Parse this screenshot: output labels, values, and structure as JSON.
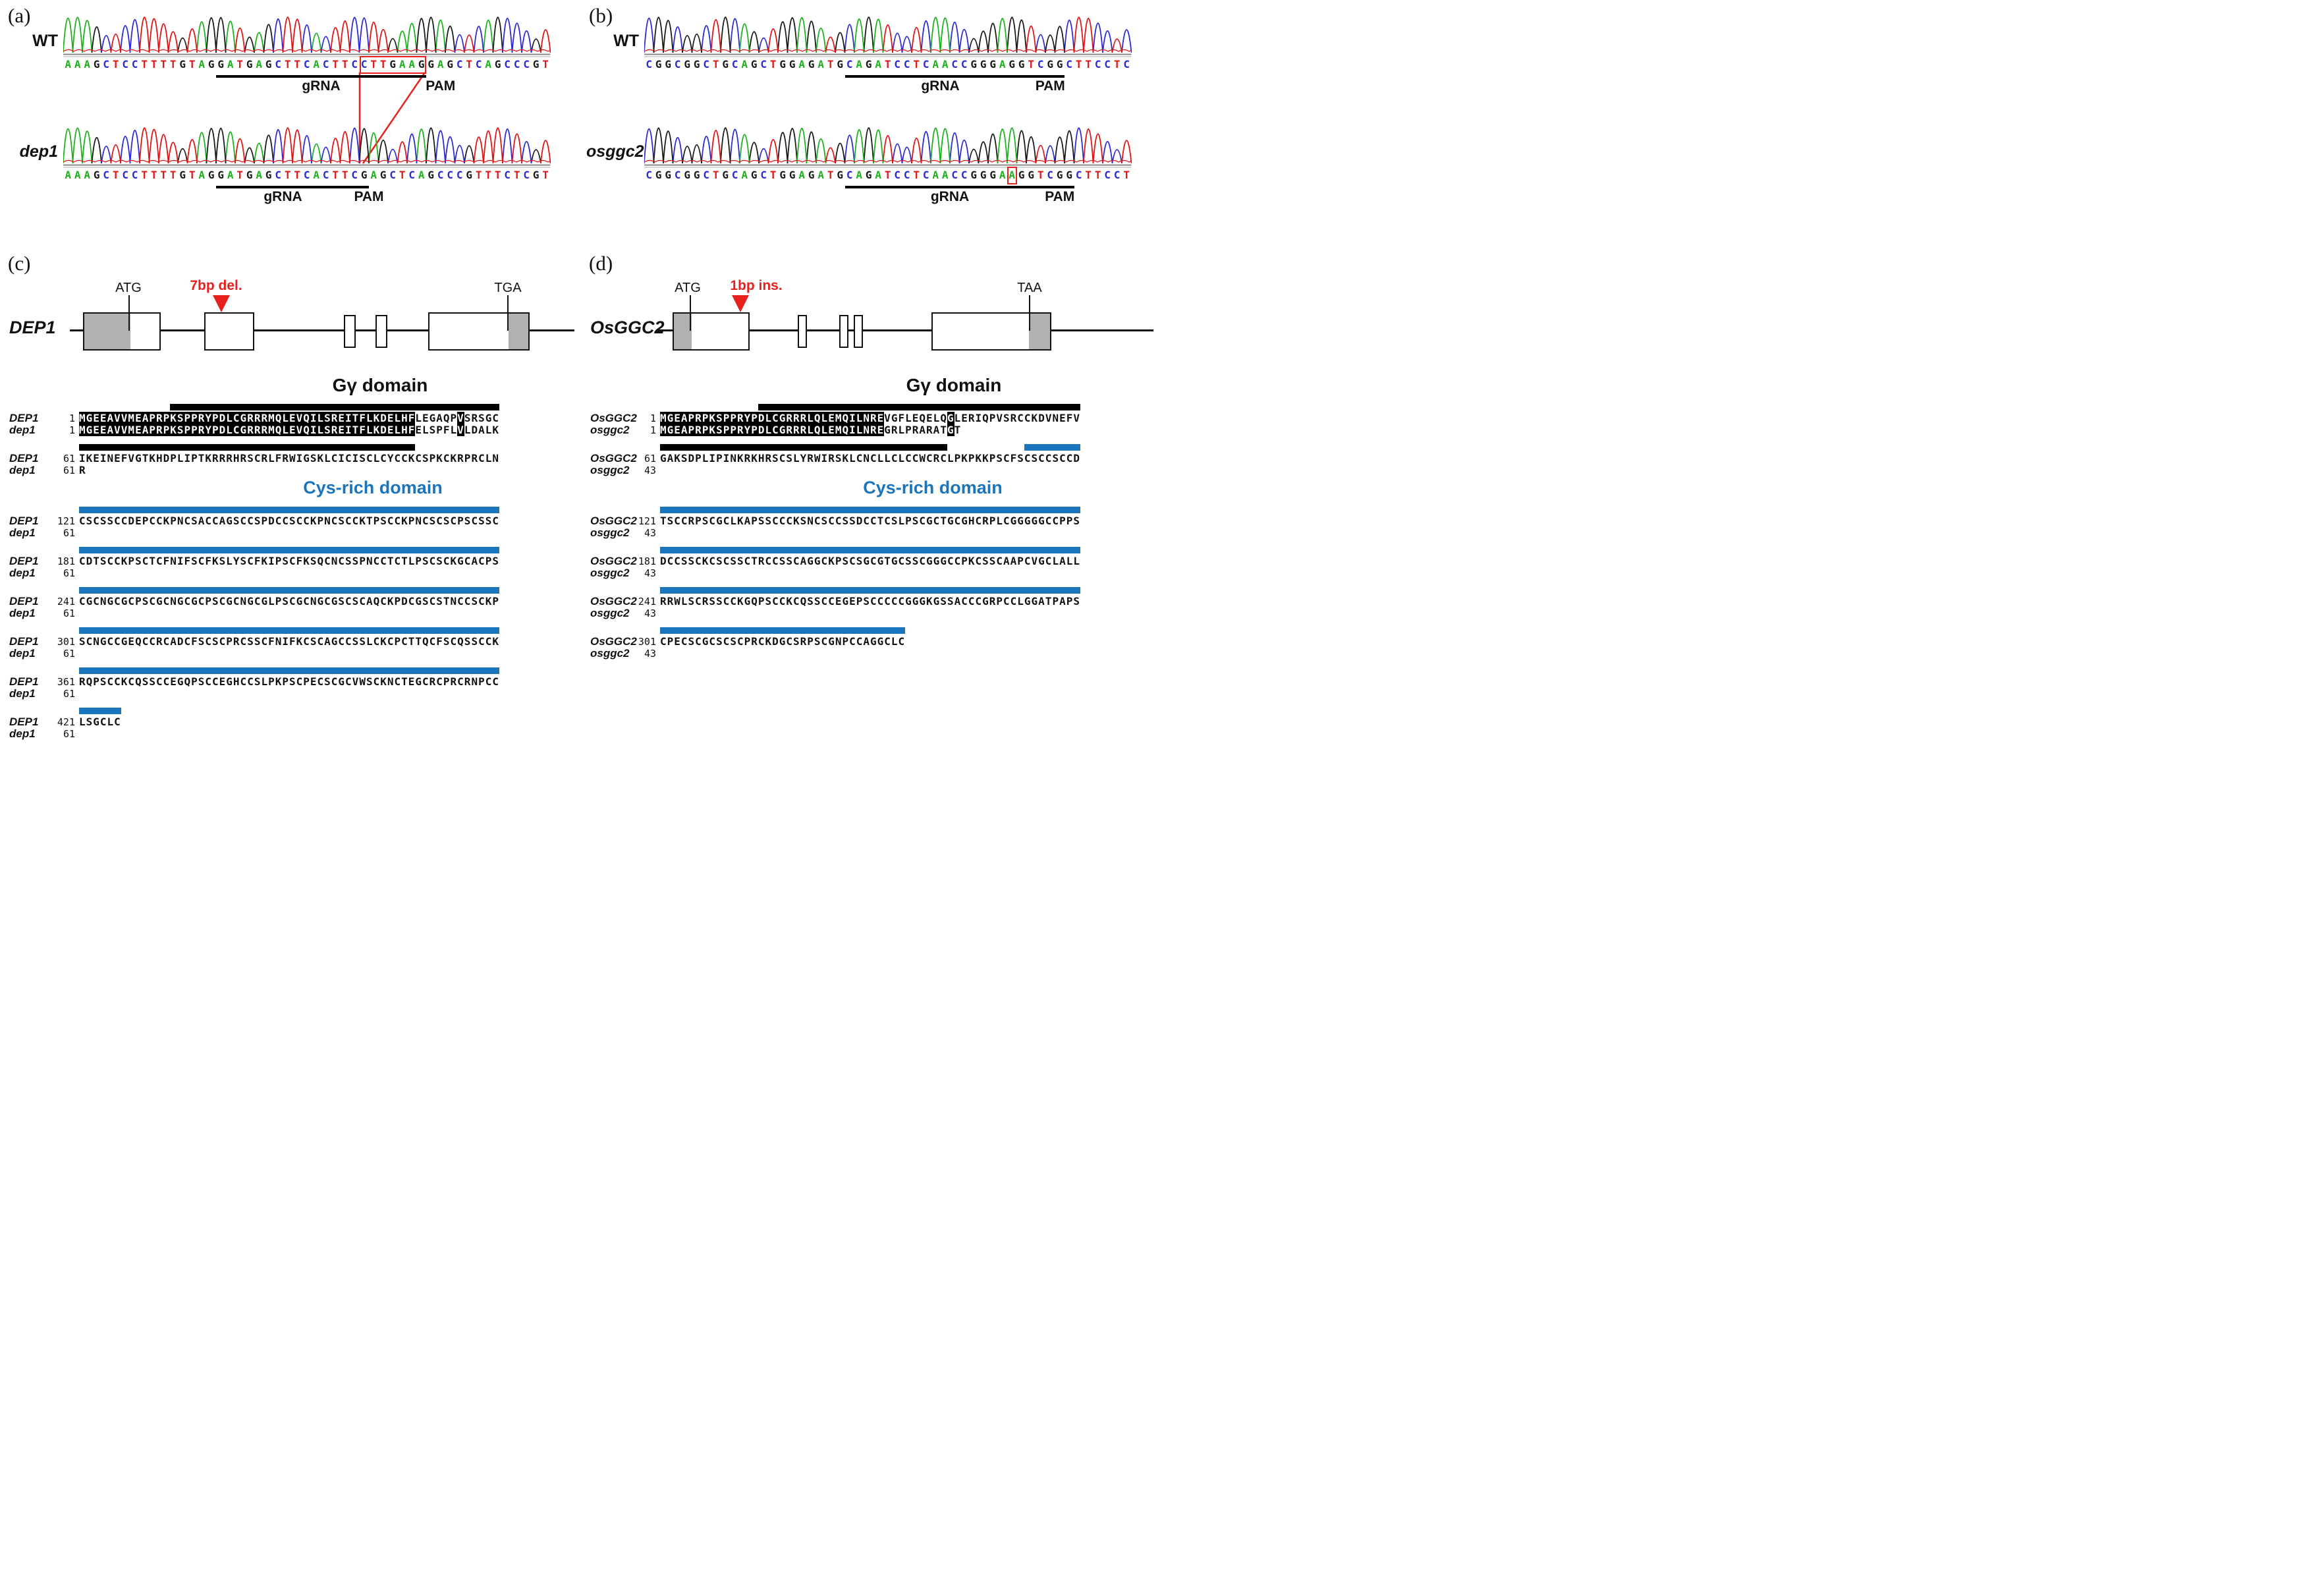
{
  "colors": {
    "red": "#e8201d",
    "domain_blue": "#1b75bc",
    "base_A": "#1cb21c",
    "base_C": "#2b2bd6",
    "base_G": "#1a1a1a",
    "base_T": "#e31414"
  },
  "panels": {
    "a": {
      "tag": "(a)",
      "rows": [
        {
          "label": "WT",
          "seq": "AAAGCTCCTTTTGTAGGATGAGCTTCACTTCCTTGAAGGAGCTCAGCCCGT",
          "box": [
            31,
            37
          ],
          "grna": [
            16,
            37
          ],
          "grna_label": "gRNA",
          "grna_center": 27,
          "pam_label": "PAM",
          "pam_center": 39.5
        },
        {
          "label": "dep1",
          "seq": "AAAGCTCCTTTTGTAGGATGAGCTTCACTTCGAGCTCAGCCCGTTTCTCGT",
          "grna": [
            16,
            30
          ],
          "grna_label": "gRNA",
          "grna_center": 23,
          "pam": [
            31,
            31
          ],
          "pam_label": "PAM",
          "pam_center": 32
        }
      ]
    },
    "b": {
      "tag": "(b)",
      "rows": [
        {
          "label": "WT",
          "seq": "CGGCGGCTGCAGCTGGAGATGCAGATCCTCAACCGGGAGGTCGGCTTCCTC",
          "grna": [
            21,
            40
          ],
          "grna_label": "gRNA",
          "grna_center": 31,
          "pam": [
            41,
            43
          ],
          "pam_label": "PAM",
          "pam_center": 42.5
        },
        {
          "label": "osggc2",
          "seq": "CGGCGGCTGCAGCTGGAGATGCAGATCCTCAACCGGGAAGGTCGGCTTCCT",
          "box": [
            38,
            38
          ],
          "grna": [
            21,
            41
          ],
          "grna_label": "gRNA",
          "grna_center": 32,
          "pam": [
            42,
            44
          ],
          "pam_label": "PAM",
          "pam_center": 43.5
        }
      ]
    },
    "c": {
      "tag": "(c)",
      "gene": {
        "name": "DEP1",
        "start_label": "ATG",
        "mut_label": "7bp del.",
        "stop_label": "TGA"
      },
      "domain1": "Gγ domain",
      "domain2": "Cys-rich domain",
      "blocks": [
        {
          "n1": "DEP1",
          "p1": "1",
          "n2": "dep1",
          "p2": "1",
          "segs1": [
            {
              "t": "MGEEAVVMEAPRPKSPPRYPDLCGRRRMQLEVQILSREITFLKDELHF",
              "h": 1
            },
            {
              "t": "LEGAQP"
            },
            {
              "t": "V",
              "h": 1
            },
            {
              "t": "SRSGC"
            }
          ],
          "segs2": [
            {
              "t": "MGEEAVVMEAPRPKSPPRYPDLCGRRRMQLEVQILSREITFLKDELHF",
              "h": 1
            },
            {
              "t": "ELSPFL"
            },
            {
              "t": "V",
              "h": 1
            },
            {
              "t": "LDALK"
            }
          ],
          "bars": [
            {
              "s": 13,
              "e": 59,
              "c": "black"
            }
          ]
        },
        {
          "n1": "DEP1",
          "p1": "61",
          "n2": "dep1",
          "p2": "61",
          "segs1": [
            {
              "t": "IKEINEFVGTKHDPLIPTKRRRHRSCRLFRWIGSKLCICISCLCYCCKCSPKCKRPRCLN"
            }
          ],
          "segs2": [
            {
              "t": "R"
            }
          ],
          "bars": [
            {
              "s": 0,
              "e": 47,
              "c": "black"
            }
          ]
        },
        {
          "n1": "DEP1",
          "p1": "121",
          "n2": "dep1",
          "p2": "61",
          "segs1": [
            {
              "t": "CSCSSCCDEPCCKPNCSACCAGSCCSPDCCSCCKPNCSCCKTPSCCKPNCSCSCPSCSSC"
            }
          ],
          "segs2": [],
          "bars": [
            {
              "s": 0,
              "e": 59,
              "c": "blue"
            }
          ]
        },
        {
          "n1": "DEP1",
          "p1": "181",
          "n2": "dep1",
          "p2": "61",
          "segs1": [
            {
              "t": "CDTSCCKPSCTCFNIFSCFKSLYSCFKIPSCFKSQCNCSSPNCCTCTLPSCSCKGCACPS"
            }
          ],
          "segs2": [],
          "bars": [
            {
              "s": 0,
              "e": 59,
              "c": "blue"
            }
          ]
        },
        {
          "n1": "DEP1",
          "p1": "241",
          "n2": "dep1",
          "p2": "61",
          "segs1": [
            {
              "t": "CGCNGCGCPSCGCNGCGCPSCGCNGCGLPSCGCNGCGSCSCAQCKPDCGSCSTNCCSCKP"
            }
          ],
          "segs2": [],
          "bars": [
            {
              "s": 0,
              "e": 59,
              "c": "blue"
            }
          ]
        },
        {
          "n1": "DEP1",
          "p1": "301",
          "n2": "dep1",
          "p2": "61",
          "segs1": [
            {
              "t": "SCNGCCGEQCCRCADCFSCSCPRCSSCFNIFKCSCAGCCSSLCKCPCTTQCFSCQSSCCK"
            }
          ],
          "segs2": [],
          "bars": [
            {
              "s": 0,
              "e": 59,
              "c": "blue"
            }
          ]
        },
        {
          "n1": "DEP1",
          "p1": "361",
          "n2": "dep1",
          "p2": "61",
          "segs1": [
            {
              "t": "RQPSCCKCQSSCCEGQPSCCEGHCCSLPKPSCPECSCGCVWSCKNCTEGCRCPRCRNPCC"
            }
          ],
          "segs2": [],
          "bars": [
            {
              "s": 0,
              "e": 59,
              "c": "blue"
            }
          ]
        },
        {
          "n1": "DEP1",
          "p1": "421",
          "n2": "dep1",
          "p2": "61",
          "segs1": [
            {
              "t": "LSGCLC"
            }
          ],
          "segs2": [],
          "bars": [
            {
              "s": 0,
              "e": 5,
              "c": "blue"
            }
          ]
        }
      ]
    },
    "d": {
      "tag": "(d)",
      "gene": {
        "name": "OsGGC2",
        "start_label": "ATG",
        "mut_label": "1bp ins.",
        "stop_label": "TAA"
      },
      "domain1": "Gγ domain",
      "domain2": "Cys-rich domain",
      "blocks": [
        {
          "n1": "OsGGC2",
          "p1": "1",
          "n2": "osggc2",
          "p2": "1",
          "segs1": [
            {
              "t": "MGEAPRPKSPPRYPDLCGRRRLQLEMQILNRE",
              "h": 1
            },
            {
              "t": "VGFLEQELQ"
            },
            {
              "t": "G",
              "h": 1
            },
            {
              "t": "LERIQPVSRCCKDVNEFV"
            }
          ],
          "segs2": [
            {
              "t": "MGEAPRPKSPPRYPDLCGRRRLQLEMQILNRE",
              "h": 1
            },
            {
              "t": "GRLPRARAT"
            },
            {
              "t": "G",
              "h": 1
            },
            {
              "t": "T"
            }
          ],
          "bars": [
            {
              "s": 14,
              "e": 59,
              "c": "black"
            }
          ]
        },
        {
          "n1": "OsGGC2",
          "p1": "61",
          "n2": "osggc2",
          "p2": "43",
          "segs1": [
            {
              "t": "GAKSDPLIPINKRKHRSCSLYRWIRSKLCNCLLCLCCWCRCLPKPKKPSCFSCSCCSCCD"
            }
          ],
          "segs2": [],
          "bars": [
            {
              "s": 0,
              "e": 40,
              "c": "black"
            },
            {
              "s": 52,
              "e": 59,
              "c": "blue"
            }
          ]
        },
        {
          "n1": "OsGGC2",
          "p1": "121",
          "n2": "osggc2",
          "p2": "43",
          "segs1": [
            {
              "t": "TSCCRPSCGCLKAPSSCCCKSNCSCCSSDCCTCSLPSCGCTGCGHCRPLCGGGGGCCPPS"
            }
          ],
          "segs2": [],
          "bars": [
            {
              "s": 0,
              "e": 59,
              "c": "blue"
            }
          ]
        },
        {
          "n1": "OsGGC2",
          "p1": "181",
          "n2": "osggc2",
          "p2": "43",
          "segs1": [
            {
              "t": "DCCSSCKCSCSSCTRCCSSCAGGCKPSCSGCGTGCSSCGGGCCPKCSSCAAPCVGCLALL"
            }
          ],
          "segs2": [],
          "bars": [
            {
              "s": 0,
              "e": 59,
              "c": "blue"
            }
          ]
        },
        {
          "n1": "OsGGC2",
          "p1": "241",
          "n2": "osggc2",
          "p2": "43",
          "segs1": [
            {
              "t": "RRWLSCRSSCCKGQPSCCKCQSSCCEGEPSCCCCCGGGKGSSACCCGRPCCLGGATPAPS"
            }
          ],
          "segs2": [],
          "bars": [
            {
              "s": 0,
              "e": 59,
              "c": "blue"
            }
          ]
        },
        {
          "n1": "OsGGC2",
          "p1": "301",
          "n2": "osggc2",
          "p2": "43",
          "segs1": [
            {
              "t": "CPECSCGCSCSCPRCKDGCSRPSCGNPCCAGGCLC"
            }
          ],
          "segs2": [],
          "bars": [
            {
              "s": 0,
              "e": 34,
              "c": "blue"
            }
          ]
        }
      ]
    }
  }
}
